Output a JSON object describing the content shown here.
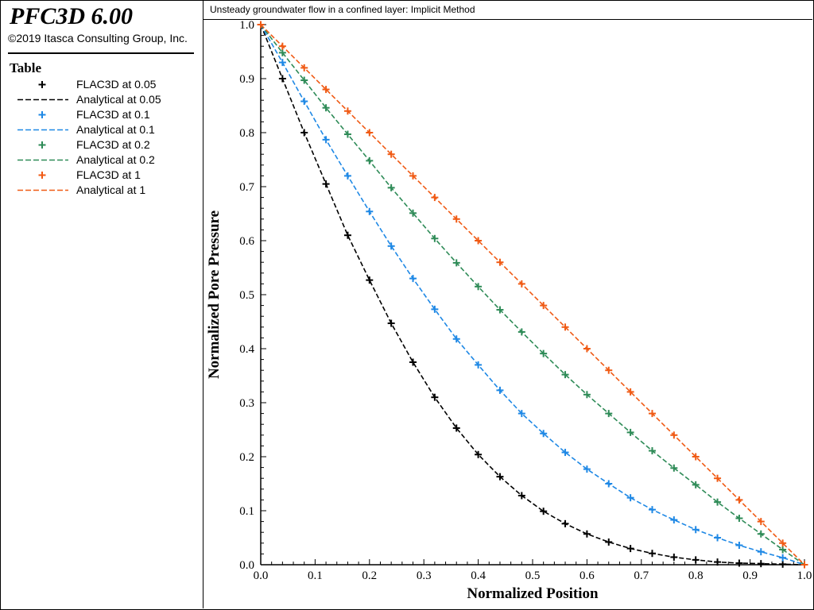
{
  "app": {
    "title": "PFC3D 6.00",
    "copyright": "©2019 Itasca Consulting Group, Inc."
  },
  "legend": {
    "title": "Table",
    "items": [
      {
        "label": "FLAC3D at 0.05",
        "kind": "marker",
        "color": "#000000"
      },
      {
        "label": "Analytical at 0.05",
        "kind": "line",
        "color": "#000000"
      },
      {
        "label": "FLAC3D at 0.1",
        "kind": "marker",
        "color": "#1e88e5"
      },
      {
        "label": "Analytical at 0.1",
        "kind": "line",
        "color": "#1e88e5"
      },
      {
        "label": "FLAC3D at 0.2",
        "kind": "marker",
        "color": "#2e8b57"
      },
      {
        "label": "Analytical at 0.2",
        "kind": "line",
        "color": "#2e8b57"
      },
      {
        "label": "FLAC3D at 1",
        "kind": "marker",
        "color": "#f05a14"
      },
      {
        "label": "Analytical at 1",
        "kind": "line",
        "color": "#f05a14"
      }
    ]
  },
  "chart_data": {
    "type": "line",
    "title": "Unsteady groundwater flow in a confined layer: Implicit Method",
    "xlabel": "Normalized Position",
    "ylabel": "Normalized Pore Pressure",
    "xlim": [
      0,
      1
    ],
    "ylim": [
      0,
      1
    ],
    "xticks": [
      "0.0",
      "0.1",
      "0.2",
      "0.3",
      "0.4",
      "0.5",
      "0.6",
      "0.7",
      "0.8",
      "0.9",
      "1.0"
    ],
    "yticks": [
      "0.0",
      "0.1",
      "0.2",
      "0.3",
      "0.4",
      "0.5",
      "0.6",
      "0.7",
      "0.8",
      "0.9",
      "1.0"
    ],
    "grid": false,
    "legend_placement": "left panel",
    "x": [
      0,
      0.04,
      0.08,
      0.12,
      0.16,
      0.2,
      0.24,
      0.28,
      0.32,
      0.36,
      0.4,
      0.44,
      0.48,
      0.52,
      0.56,
      0.6,
      0.64,
      0.68,
      0.72,
      0.76,
      0.8,
      0.84,
      0.88,
      0.92,
      0.96,
      1.0
    ],
    "series": [
      {
        "name": "FLAC3D at 0.05",
        "kind": "marker",
        "color": "#000000",
        "values": [
          1.0,
          0.9,
          0.8,
          0.705,
          0.61,
          0.527,
          0.447,
          0.375,
          0.31,
          0.253,
          0.204,
          0.163,
          0.128,
          0.099,
          0.076,
          0.057,
          0.042,
          0.03,
          0.021,
          0.014,
          0.009,
          0.005,
          0.003,
          0.002,
          0.001,
          0.0
        ]
      },
      {
        "name": "Analytical at 0.05",
        "kind": "line",
        "color": "#000000",
        "values": [
          1.0,
          0.9,
          0.8,
          0.705,
          0.61,
          0.527,
          0.447,
          0.375,
          0.31,
          0.253,
          0.204,
          0.163,
          0.128,
          0.099,
          0.076,
          0.057,
          0.042,
          0.03,
          0.021,
          0.014,
          0.009,
          0.005,
          0.003,
          0.002,
          0.001,
          0.0
        ]
      },
      {
        "name": "FLAC3D at 0.1",
        "kind": "marker",
        "color": "#1e88e5",
        "values": [
          1.0,
          0.93,
          0.858,
          0.787,
          0.72,
          0.654,
          0.59,
          0.53,
          0.473,
          0.418,
          0.37,
          0.323,
          0.28,
          0.243,
          0.208,
          0.177,
          0.15,
          0.124,
          0.102,
          0.083,
          0.065,
          0.05,
          0.036,
          0.024,
          0.013,
          0.0
        ]
      },
      {
        "name": "Analytical at 0.1",
        "kind": "line",
        "color": "#1e88e5",
        "values": [
          1.0,
          0.93,
          0.858,
          0.787,
          0.72,
          0.654,
          0.59,
          0.53,
          0.473,
          0.418,
          0.37,
          0.323,
          0.28,
          0.243,
          0.208,
          0.177,
          0.15,
          0.124,
          0.102,
          0.083,
          0.065,
          0.05,
          0.036,
          0.024,
          0.013,
          0.0
        ]
      },
      {
        "name": "FLAC3D at 0.2",
        "kind": "marker",
        "color": "#2e8b57",
        "values": [
          1.0,
          0.948,
          0.897,
          0.846,
          0.797,
          0.748,
          0.698,
          0.651,
          0.604,
          0.559,
          0.515,
          0.472,
          0.431,
          0.391,
          0.352,
          0.315,
          0.28,
          0.245,
          0.211,
          0.179,
          0.148,
          0.116,
          0.086,
          0.057,
          0.028,
          0.0
        ]
      },
      {
        "name": "Analytical at 0.2",
        "kind": "line",
        "color": "#2e8b57",
        "values": [
          1.0,
          0.948,
          0.897,
          0.846,
          0.797,
          0.748,
          0.698,
          0.651,
          0.604,
          0.559,
          0.515,
          0.472,
          0.431,
          0.391,
          0.352,
          0.315,
          0.28,
          0.245,
          0.211,
          0.179,
          0.148,
          0.116,
          0.086,
          0.057,
          0.028,
          0.0
        ]
      },
      {
        "name": "FLAC3D at 1",
        "kind": "marker",
        "color": "#f05a14",
        "values": [
          1.0,
          0.96,
          0.92,
          0.88,
          0.84,
          0.8,
          0.76,
          0.72,
          0.68,
          0.64,
          0.6,
          0.56,
          0.52,
          0.48,
          0.44,
          0.4,
          0.36,
          0.32,
          0.28,
          0.24,
          0.2,
          0.16,
          0.12,
          0.08,
          0.04,
          0.0
        ]
      },
      {
        "name": "Analytical at 1",
        "kind": "line",
        "color": "#f05a14",
        "values": [
          1.0,
          0.96,
          0.92,
          0.88,
          0.84,
          0.8,
          0.76,
          0.72,
          0.68,
          0.64,
          0.6,
          0.56,
          0.52,
          0.48,
          0.44,
          0.4,
          0.36,
          0.32,
          0.28,
          0.24,
          0.2,
          0.16,
          0.12,
          0.08,
          0.04,
          0.0
        ]
      }
    ]
  }
}
